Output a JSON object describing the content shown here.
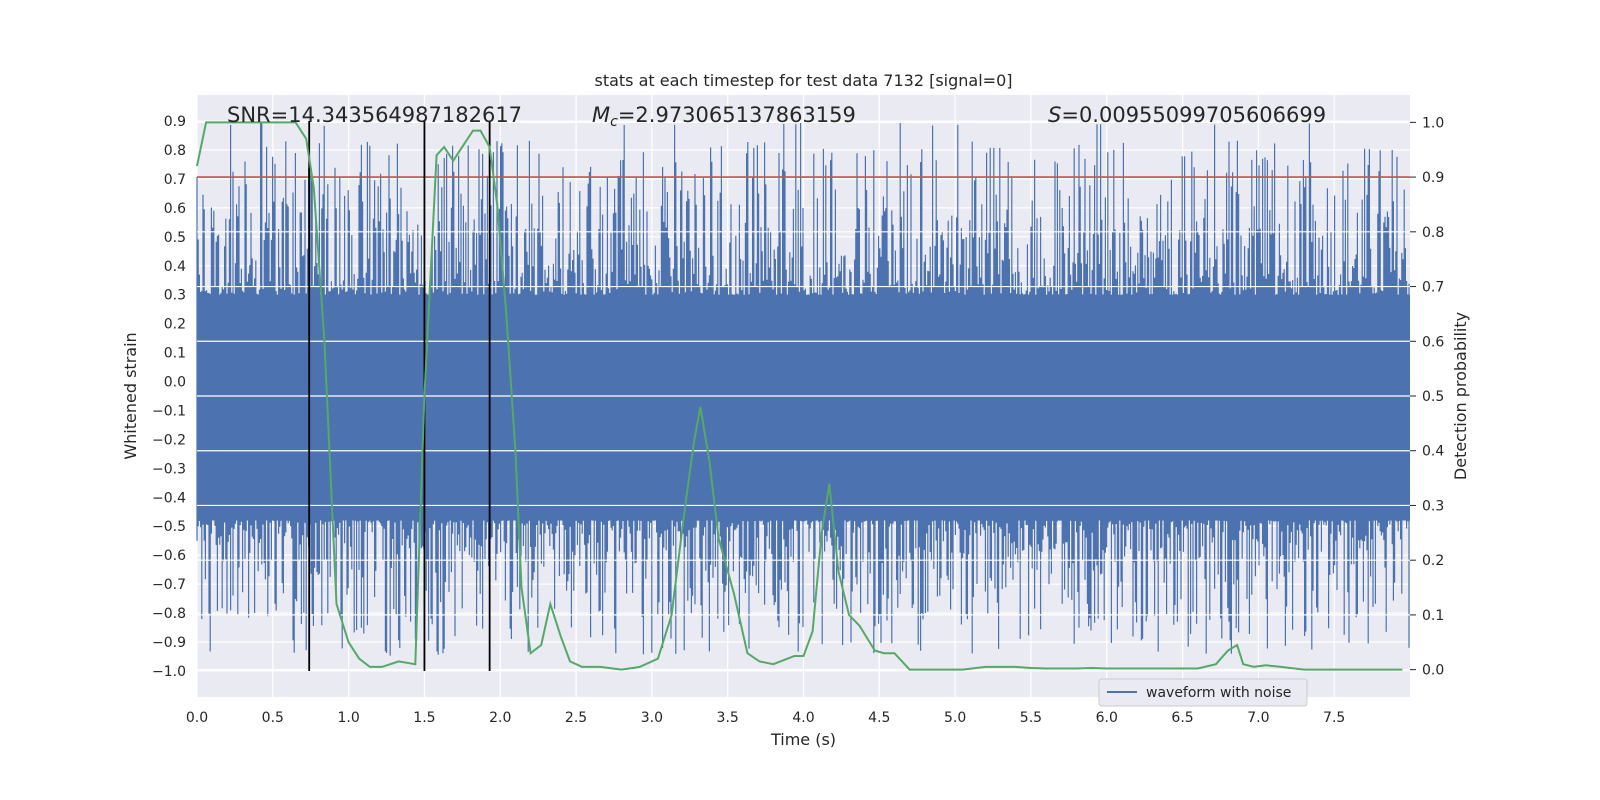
{
  "chart_data": {
    "type": "line",
    "title": "stats at each timestep for test data 7132 [signal=0]",
    "xlabel": "Time (s)",
    "ylabel": "Whitened strain",
    "y2label": "Detection probability",
    "xlim": [
      0.0,
      8.0
    ],
    "ylim": [
      -1.09,
      0.99
    ],
    "y2lim": [
      -0.05,
      1.05
    ],
    "xticks": [
      "0.0",
      "0.5",
      "1.0",
      "1.5",
      "2.0",
      "2.5",
      "3.0",
      "3.5",
      "4.0",
      "4.5",
      "5.0",
      "5.5",
      "6.0",
      "6.5",
      "7.0",
      "7.5"
    ],
    "yticks": [
      "0.9",
      "0.8",
      "0.7",
      "0.6",
      "0.5",
      "0.4",
      "0.3",
      "0.2",
      "0.1",
      "0.0",
      "−0.1",
      "−0.2",
      "−0.3",
      "−0.4",
      "−0.5",
      "−0.6",
      "−0.7",
      "−0.8",
      "−0.9",
      "−1.0"
    ],
    "y2ticks": [
      "1.0",
      "0.9",
      "0.8",
      "0.7",
      "0.6",
      "0.5",
      "0.4",
      "0.3",
      "0.2",
      "0.1",
      "0.0"
    ],
    "grid": true,
    "background": "#eaeaf2",
    "annotations": {
      "snr": "SNR=14.343564987182617",
      "mc_symbol": "M",
      "mc_sub": "c",
      "mc_value": "=2.973065137863159",
      "s_symbol": "S",
      "s_value": "=0.00955099705606699"
    },
    "threshold": {
      "value": 0.9,
      "axis": "right",
      "color": "#c44e52"
    },
    "event_lines": {
      "x": [
        0.74,
        1.5,
        1.93
      ],
      "color": "#000000"
    },
    "series": [
      {
        "name": "waveform with noise",
        "axis": "left",
        "color": "#4c72b0",
        "style": "noise",
        "band_ylim": [
          -0.48,
          0.3
        ],
        "peak_ylim": [
          -1.0,
          0.9
        ]
      },
      {
        "axis": "right",
        "color": "#55a868",
        "x": [
          0.0,
          0.06,
          0.2,
          0.4,
          0.6,
          0.65,
          0.72,
          0.77,
          0.84,
          0.92,
          1.0,
          1.07,
          1.14,
          1.22,
          1.33,
          1.44,
          1.5,
          1.58,
          1.63,
          1.69,
          1.82,
          1.87,
          1.93,
          1.98,
          2.04,
          2.1,
          2.14,
          2.2,
          2.27,
          2.33,
          2.4,
          2.46,
          2.54,
          2.66,
          2.8,
          2.92,
          3.04,
          3.13,
          3.22,
          3.28,
          3.32,
          3.38,
          3.44,
          3.54,
          3.63,
          3.71,
          3.8,
          3.94,
          4.0,
          4.06,
          4.12,
          4.17,
          4.23,
          4.3,
          4.37,
          4.47,
          4.53,
          4.6,
          4.7,
          4.85,
          5.05,
          5.2,
          5.3,
          5.4,
          5.5,
          5.6,
          5.8,
          5.9,
          6.0,
          6.1,
          6.2,
          6.4,
          6.6,
          6.72,
          6.8,
          6.86,
          6.9,
          6.97,
          7.05,
          7.15,
          7.3,
          7.5,
          7.7,
          7.95
        ],
        "y": [
          0.92,
          1.0,
          1.0,
          1.0,
          1.0,
          1.0,
          0.97,
          0.88,
          0.6,
          0.12,
          0.05,
          0.02,
          0.005,
          0.005,
          0.015,
          0.01,
          0.5,
          0.94,
          0.955,
          0.93,
          0.985,
          0.985,
          0.955,
          0.85,
          0.65,
          0.4,
          0.15,
          0.03,
          0.045,
          0.12,
          0.06,
          0.015,
          0.005,
          0.005,
          0.0,
          0.005,
          0.02,
          0.1,
          0.3,
          0.42,
          0.48,
          0.38,
          0.24,
          0.14,
          0.03,
          0.015,
          0.01,
          0.025,
          0.025,
          0.07,
          0.25,
          0.34,
          0.18,
          0.1,
          0.08,
          0.035,
          0.03,
          0.03,
          0.0,
          0.0,
          0.0,
          0.005,
          0.005,
          0.005,
          0.003,
          0.002,
          0.002,
          0.003,
          0.002,
          0.002,
          0.002,
          0.002,
          0.002,
          0.01,
          0.035,
          0.045,
          0.01,
          0.005,
          0.008,
          0.005,
          0.0,
          0.0,
          0.0,
          0.0
        ]
      }
    ],
    "legend": {
      "placement": "lower-right"
    }
  }
}
